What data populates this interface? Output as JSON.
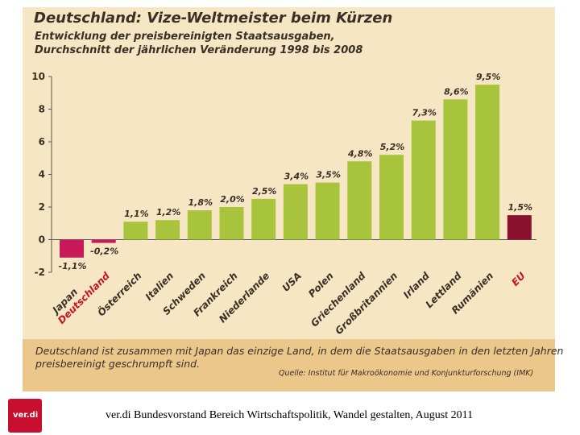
{
  "title": "Deutschland: Vize-Weltmeister beim Kürzen",
  "subtitle_line1": "Entwicklung der preisbereinigten Staatsausgaben,",
  "subtitle_line2": "Durchschnitt der jährlichen Veränderung 1998 bis 2008",
  "note_line1": "Deutschland ist zusammen mit Japan das einzige Land, in dem die Staatsausgaben in den letzten Jahren",
  "note_line2": "preisbereinigt geschrumpft sind.",
  "source": "Quelle: Institut für Makroökonomie und Konjunkturforschung (IMK)",
  "logo_text": "ver.di",
  "bottom_caption": "ver.di Bundesvorstand Bereich Wirtschaftspolitik, Wandel gestalten, August 2011",
  "colors": {
    "positive": "#a8c43c",
    "negative": "#c8195a",
    "highlight": "#8a1030",
    "highlight_label": "#c0142a",
    "text": "#3b2e24"
  },
  "chart_data": {
    "type": "bar",
    "categories": [
      "Japan",
      "Deutschland",
      "Österreich",
      "Italien",
      "Schweden",
      "Frankreich",
      "Niederlande",
      "USA",
      "Polen",
      "Griechenland",
      "Großbritannien",
      "Irland",
      "Lettland",
      "Rumänien",
      "EU"
    ],
    "values": [
      -1.1,
      -0.2,
      1.1,
      1.2,
      1.8,
      2.0,
      2.5,
      3.4,
      3.5,
      4.8,
      5.2,
      7.3,
      8.6,
      9.5,
      1.5
    ],
    "value_labels": [
      "-1,1%",
      "-0,2%",
      "1,1%",
      "1,2%",
      "1,8%",
      "2,0%",
      "2,5%",
      "3,4%",
      "3,5%",
      "4,8%",
      "5,2%",
      "7,3%",
      "8,6%",
      "9,5%",
      "1,5%"
    ],
    "highlight": [
      "Deutschland",
      "EU"
    ],
    "ylim": [
      -2,
      10
    ],
    "yticks": [
      10,
      8,
      6,
      4,
      2,
      0,
      -2
    ],
    "ytick_labels": [
      "10",
      "8",
      "6",
      "4",
      "2",
      "0",
      "-2"
    ],
    "grid": false,
    "legend": "none"
  }
}
